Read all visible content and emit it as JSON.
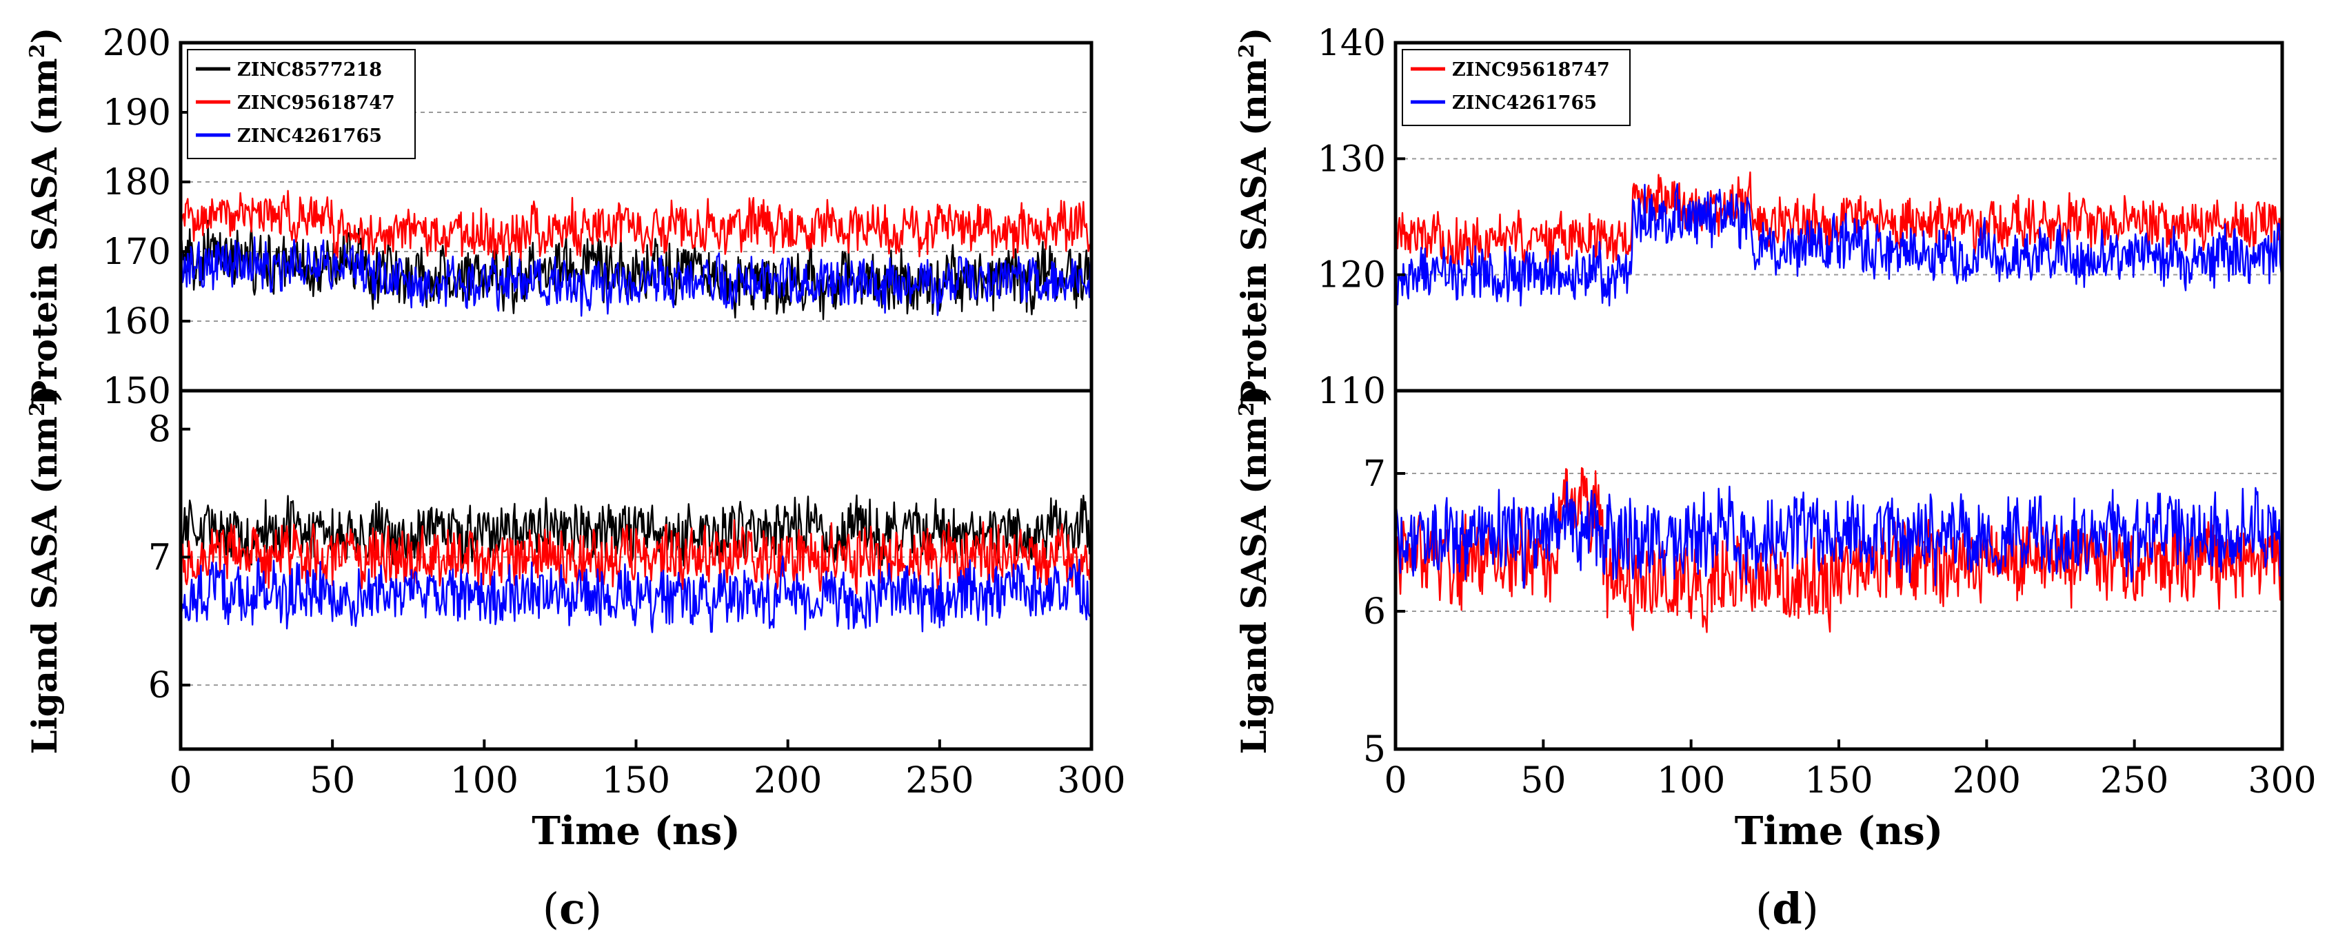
{
  "chart_data": [
    {
      "type": "line",
      "id": "c",
      "caption_label": "c",
      "xlabel": "Time (ns)",
      "xlim": [
        0,
        300
      ],
      "xticks": [
        "0",
        "50",
        "100",
        "150",
        "200",
        "250",
        "300"
      ],
      "panels": [
        {
          "name": "protein",
          "ylabel": "Protein SASA (nm",
          "ylabel_sup": "2",
          "ylim": [
            150,
            200
          ],
          "yticks": [
            "150",
            "160",
            "170",
            "180",
            "190",
            "200"
          ],
          "ygrid": [
            160,
            170,
            180,
            190
          ],
          "series": [
            {
              "name": "ZINC8577218",
              "color": "#000000",
              "mean": 167,
              "amp": 3.2,
              "segments": [
                [
                  0,
                  60,
                  168.5
                ],
                [
                  60,
                  120,
                  166.5
                ],
                [
                  120,
                  180,
                  167.5
                ],
                [
                  180,
                  240,
                  165.5
                ],
                [
                  240,
                  300,
                  166
                ]
              ]
            },
            {
              "name": "ZINC95618747",
              "color": "#ff0000",
              "mean": 173,
              "amp": 2.6,
              "segments": [
                [
                  0,
                  50,
                  175
                ],
                [
                  50,
                  120,
                  172.5
                ],
                [
                  120,
                  300,
                  173.5
                ]
              ]
            },
            {
              "name": "ZINC4261765",
              "color": "#0000ff",
              "mean": 166,
              "amp": 2.6,
              "segments": [
                [
                  0,
                  60,
                  168
                ],
                [
                  60,
                  300,
                  165.5
                ]
              ]
            }
          ]
        },
        {
          "name": "ligand",
          "ylabel": "Ligand SASA (nm",
          "ylabel_sup": "2",
          "ylim": [
            5.5,
            8.3
          ],
          "yticks": [
            "6",
            "7",
            "8"
          ],
          "ygrid": [
            6,
            7
          ],
          "series": [
            {
              "name": "ZINC8577218",
              "color": "#000000",
              "mean": 7.2,
              "amp": 0.17
            },
            {
              "name": "ZINC95618747",
              "color": "#ff0000",
              "mean": 7.0,
              "amp": 0.17
            },
            {
              "name": "ZINC4261765",
              "color": "#0000ff",
              "mean": 6.7,
              "amp": 0.18
            }
          ]
        }
      ],
      "legend": [
        "ZINC8577218",
        "ZINC95618747",
        "ZINC4261765"
      ]
    },
    {
      "type": "line",
      "id": "d",
      "caption_label": "d",
      "xlabel": "Time (ns)",
      "xlim": [
        0,
        300
      ],
      "xticks": [
        "0",
        "50",
        "100",
        "150",
        "200",
        "250",
        "300"
      ],
      "panels": [
        {
          "name": "protein",
          "ylabel": "Protein SASA (nm",
          "ylabel_sup": "2",
          "ylim": [
            110,
            140
          ],
          "yticks": [
            "110",
            "120",
            "130",
            "140"
          ],
          "ygrid": [
            120,
            130
          ],
          "series": [
            {
              "name": "ZINC95618747",
              "color": "#ff0000",
              "mean": 124,
              "amp": 1.6,
              "segments": [
                [
                  0,
                  80,
                  123
                ],
                [
                  80,
                  120,
                  126
                ],
                [
                  120,
                  300,
                  124.5
                ]
              ]
            },
            {
              "name": "ZINC4261765",
              "color": "#0000ff",
              "mean": 121,
              "amp": 1.8,
              "segments": [
                [
                  0,
                  80,
                  120
                ],
                [
                  80,
                  120,
                  125
                ],
                [
                  120,
                  160,
                  122.5
                ],
                [
                  160,
                  300,
                  121.5
                ]
              ]
            }
          ]
        },
        {
          "name": "ligand",
          "ylabel": "Ligand SASA (nm",
          "ylabel_sup": "2",
          "ylim": [
            5,
            7.6
          ],
          "yticks": [
            "5",
            "6",
            "7"
          ],
          "ygrid": [
            6,
            7
          ],
          "series": [
            {
              "name": "ZINC95618747",
              "color": "#ff0000",
              "mean": 6.35,
              "amp": 0.22,
              "segments": [
                [
                  0,
                  55,
                  6.4
                ],
                [
                  55,
                  70,
                  6.8
                ],
                [
                  70,
                  150,
                  6.2
                ],
                [
                  150,
                  300,
                  6.35
                ]
              ]
            },
            {
              "name": "ZINC4261765",
              "color": "#0000ff",
              "mean": 6.55,
              "amp": 0.22,
              "segments": [
                [
                  0,
                  300,
                  6.55
                ]
              ]
            }
          ]
        }
      ],
      "legend": [
        "ZINC95618747",
        "ZINC4261765"
      ]
    }
  ]
}
